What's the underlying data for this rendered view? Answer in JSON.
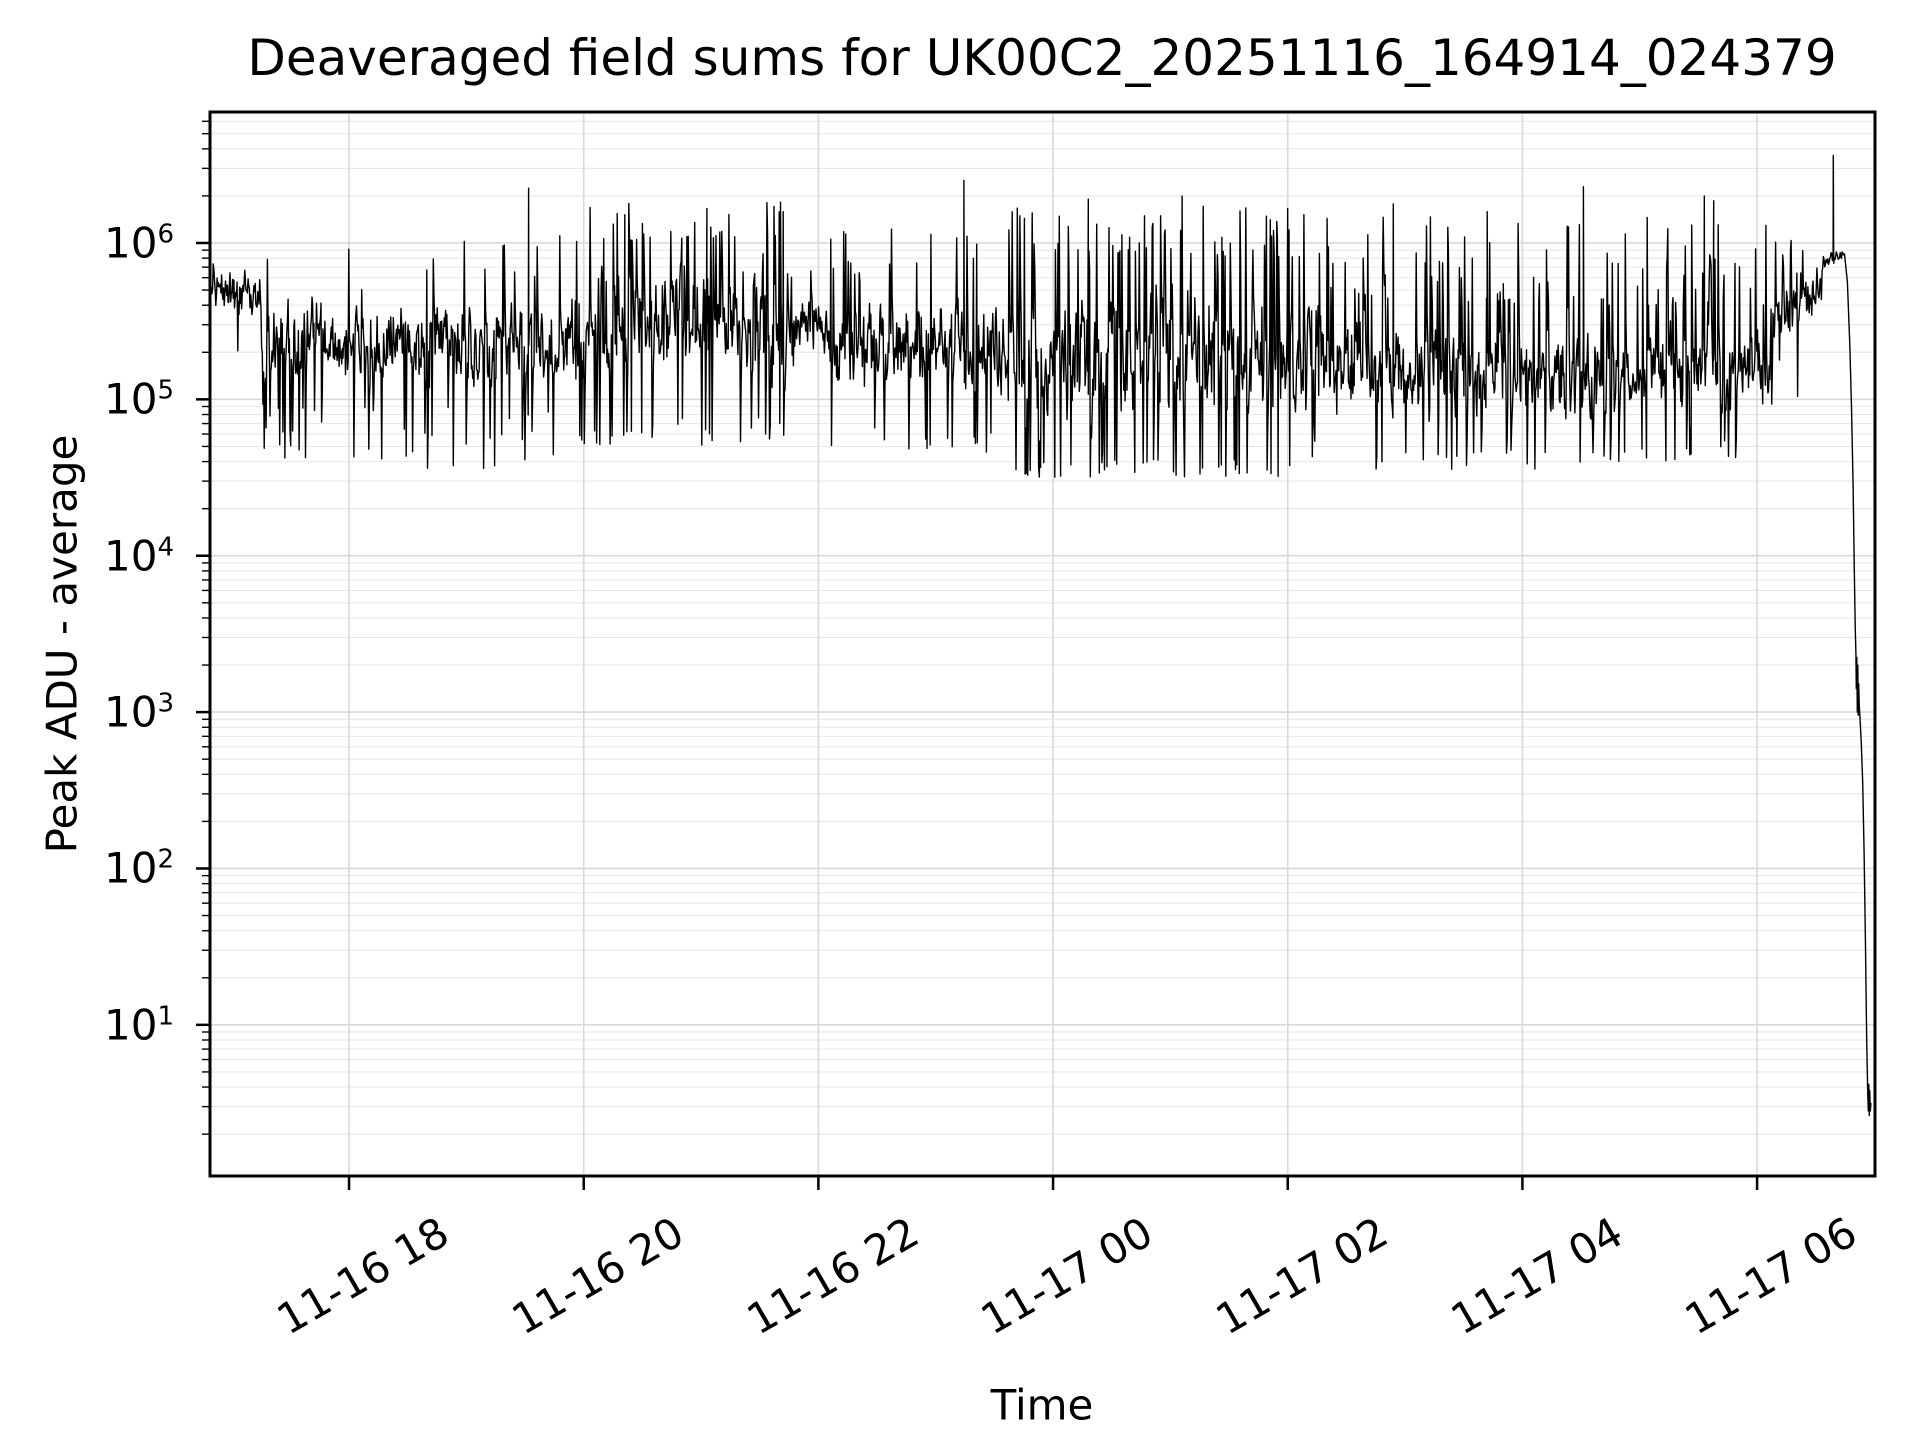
{
  "chart_data": {
    "type": "line",
    "title": "Deaveraged field sums for UK00C2_20251116_164914_024379",
    "xlabel": "Time",
    "ylabel": "Peak ADU - average",
    "series_color": "#000000",
    "background": "#ffffff",
    "frame_color": "#000000",
    "grid": {
      "major_color": "#d9d9d9",
      "minor_color": "#e9e9e9",
      "vertical_minor": false,
      "horizontal_minor": true,
      "legend": "none"
    },
    "x_axis": {
      "hours_reference": "hours since 2025-11-16 00:00",
      "lim_hours": [
        16.815,
        31.005
      ],
      "tick_hours": [
        18,
        20,
        22,
        24,
        26,
        28,
        30
      ],
      "tick_labels": [
        "11-16 18",
        "11-16 20",
        "11-16 22",
        "11-17 00",
        "11-17 02",
        "11-17 04",
        "11-17 06"
      ],
      "tick_label_rotation_deg": 30
    },
    "y_axis": {
      "scale": "log",
      "lim": [
        1.08,
        6880000
      ],
      "tick_base": 10,
      "tick_exponents": [
        6,
        5,
        4,
        3,
        2,
        1
      ],
      "minor_multiples": [
        2,
        3,
        4,
        5,
        6,
        7,
        8,
        9
      ]
    },
    "series_model": {
      "description": "Dense noisy black trace of peak ADU vs time (log scale). Values given as log10(ADU). Band envelope per time segment, notable spikes, and the final shutdown descent ending near 3 ADU at ~06:58.",
      "sample_step_hours": 0.0055,
      "envelope": [
        {
          "t0": 16.815,
          "t1": 17.25,
          "lo0": 5.5,
          "lo1": 5.45,
          "hi0": 5.95,
          "hi1": 5.9,
          "p_spike": 0.01,
          "spike_hi": 6.0,
          "p_dip": 0.02,
          "dip_lo": 5.3
        },
        {
          "t0": 17.25,
          "t1": 18.1,
          "lo0": 5.0,
          "lo1": 5.0,
          "hi0": 5.8,
          "hi1": 5.75,
          "p_spike": 0.02,
          "spike_hi": 6.0,
          "p_dip": 0.08,
          "dip_lo": 4.6
        },
        {
          "t0": 18.1,
          "t1": 19.9,
          "lo0": 4.95,
          "lo1": 4.95,
          "hi0": 5.7,
          "hi1": 5.75,
          "p_spike": 0.03,
          "spike_hi": 6.05,
          "p_dip": 0.07,
          "dip_lo": 4.55
        },
        {
          "t0": 19.9,
          "t1": 21.8,
          "lo0": 4.9,
          "lo1": 4.9,
          "hi0": 6.0,
          "hi1": 6.05,
          "p_spike": 0.09,
          "spike_hi": 6.3,
          "p_dip": 0.06,
          "dip_lo": 4.7
        },
        {
          "t0": 21.8,
          "t1": 22.1,
          "lo0": 5.2,
          "lo1": 5.2,
          "hi0": 5.75,
          "hi1": 5.7,
          "p_spike": 0.02,
          "spike_hi": 5.9,
          "p_dip": 0.02,
          "dip_lo": 5.05
        },
        {
          "t0": 22.1,
          "t1": 23.65,
          "lo0": 4.85,
          "lo1": 4.85,
          "hi0": 5.8,
          "hi1": 5.8,
          "p_spike": 0.05,
          "spike_hi": 6.1,
          "p_dip": 0.06,
          "dip_lo": 4.65
        },
        {
          "t0": 23.65,
          "t1": 26.3,
          "lo0": 4.6,
          "lo1": 4.65,
          "hi0": 5.95,
          "hi1": 5.9,
          "p_spike": 0.1,
          "spike_hi": 6.25,
          "p_dip": 0.08,
          "dip_lo": 4.5
        },
        {
          "t0": 26.3,
          "t1": 28.6,
          "lo0": 4.7,
          "lo1": 4.7,
          "hi0": 5.65,
          "hi1": 5.6,
          "p_spike": 0.12,
          "spike_hi": 6.2,
          "p_dip": 0.05,
          "dip_lo": 4.55
        },
        {
          "t0": 28.6,
          "t1": 30.1,
          "lo0": 4.72,
          "lo1": 4.75,
          "hi0": 5.6,
          "hi1": 5.6,
          "p_spike": 0.13,
          "spike_hi": 6.25,
          "p_dip": 0.05,
          "dip_lo": 4.6
        },
        {
          "t0": 30.1,
          "t1": 30.55,
          "lo0": 4.95,
          "lo1": 5.55,
          "hi0": 5.85,
          "hi1": 6.0,
          "p_spike": 0.05,
          "spike_hi": 6.05,
          "p_dip": 0.02,
          "dip_lo": 4.9
        },
        {
          "t0": 30.55,
          "t1": 30.74,
          "lo0": 5.8,
          "lo1": 5.88,
          "hi0": 5.95,
          "hi1": 5.97,
          "p_spike": 0,
          "spike_hi": 6.0,
          "p_dip": 0,
          "dip_lo": 5.8
        }
      ],
      "spikes_t_log10v": [
        [
          19.53,
          6.35
        ],
        [
          20.35,
          6.18
        ],
        [
          21.05,
          6.22
        ],
        [
          21.7,
          6.2
        ],
        [
          23.24,
          6.4
        ],
        [
          24.3,
          6.28
        ],
        [
          25.1,
          6.3
        ],
        [
          26.0,
          6.22
        ],
        [
          26.9,
          6.25
        ],
        [
          27.7,
          6.2
        ],
        [
          28.52,
          6.36
        ],
        [
          29.55,
          6.3
        ],
        [
          29.63,
          6.27
        ],
        [
          30.65,
          6.56
        ]
      ],
      "tail_t_log10v": [
        [
          30.745,
          5.93
        ],
        [
          30.77,
          5.75
        ],
        [
          30.79,
          5.35
        ],
        [
          30.805,
          4.95
        ],
        [
          30.818,
          4.45
        ],
        [
          30.828,
          3.95
        ],
        [
          30.836,
          3.55
        ],
        [
          30.842,
          3.38
        ],
        [
          30.846,
          3.15
        ],
        [
          30.85,
          3.35
        ],
        [
          30.854,
          3.0
        ],
        [
          30.858,
          3.3
        ],
        [
          30.862,
          2.98
        ],
        [
          30.866,
          3.18
        ],
        [
          30.87,
          3.05
        ],
        [
          30.878,
          2.95
        ],
        [
          30.888,
          2.8
        ],
        [
          30.9,
          2.55
        ],
        [
          30.912,
          2.1
        ],
        [
          30.924,
          1.5
        ],
        [
          30.934,
          0.9
        ],
        [
          30.942,
          0.6
        ],
        [
          30.948,
          0.45
        ],
        [
          30.952,
          0.62
        ],
        [
          30.956,
          0.42
        ],
        [
          30.96,
          0.58
        ],
        [
          30.965,
          0.45
        ],
        [
          30.97,
          0.5
        ]
      ]
    }
  }
}
